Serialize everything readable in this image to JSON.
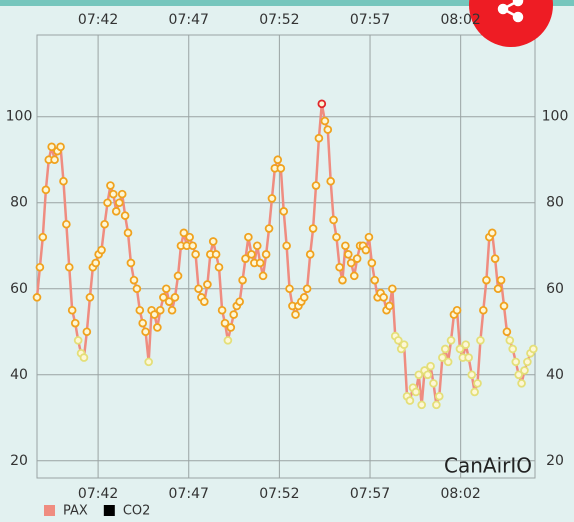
{
  "chart_data": {
    "type": "line",
    "watermark": "CanAirIO",
    "x": [
      458.63,
      458.79,
      458.95,
      459.12,
      459.28,
      459.44,
      459.6,
      459.76,
      459.93,
      460.09,
      460.25,
      460.41,
      460.57,
      460.74,
      460.9,
      461.06,
      461.22,
      461.38,
      461.55,
      461.71,
      461.87,
      462.03,
      462.19,
      462.36,
      462.52,
      462.68,
      462.84,
      463.0,
      463.17,
      463.33,
      463.49,
      463.65,
      463.81,
      463.98,
      464.14,
      464.3,
      464.46,
      464.62,
      464.79,
      464.95,
      465.11,
      465.27,
      465.43,
      465.6,
      465.76,
      465.92,
      466.08,
      466.24,
      466.41,
      466.57,
      466.73,
      466.89,
      467.05,
      467.22,
      467.38,
      467.54,
      467.7,
      467.86,
      468.03,
      468.19,
      468.35,
      468.51,
      468.67,
      468.84,
      469.0,
      469.16,
      469.32,
      469.48,
      469.65,
      469.81,
      469.97,
      470.13,
      470.29,
      470.46,
      470.62,
      470.78,
      470.94,
      471.1,
      471.27,
      471.43,
      471.59,
      471.75,
      471.91,
      472.08,
      472.24,
      472.4,
      472.56,
      472.72,
      472.89,
      473.05,
      473.21,
      473.37,
      473.53,
      473.7,
      473.86,
      474.02,
      474.18,
      474.34,
      474.51,
      474.67,
      474.83,
      474.99,
      475.15,
      475.32,
      475.48,
      475.64,
      475.8,
      475.96,
      476.13,
      476.29,
      476.45,
      476.61,
      476.77,
      476.94,
      477.1,
      477.26,
      477.42,
      477.58,
      477.75,
      477.91,
      478.07,
      478.23,
      478.39,
      478.56,
      478.72,
      478.88,
      479.04,
      479.2,
      479.37,
      479.53,
      479.69,
      479.85,
      480.01,
      480.18,
      480.34,
      480.5,
      480.66,
      480.82,
      480.99,
      481.15,
      481.31,
      481.47,
      481.63,
      481.8,
      481.96,
      482.12,
      482.28,
      482.44,
      482.61,
      482.77,
      482.93,
      483.09,
      483.25,
      483.42,
      483.58,
      483.74,
      483.9,
      484.06,
      484.23,
      484.39,
      484.55,
      484.71,
      484.87,
      485.04,
      485.2,
      485.36,
      485.52,
      485.68,
      485.85,
      486.01
    ],
    "series": [
      {
        "name": "PAX",
        "color": "#ef8c80",
        "marker_levels": [
          {
            "below": 50,
            "color": "#e4df78"
          },
          {
            "below": 100,
            "color": "#f0a21e"
          },
          {
            "color": "#e0262a"
          }
        ],
        "values": [
          58,
          65,
          72,
          83,
          90,
          93,
          90,
          92,
          93,
          85,
          75,
          65,
          55,
          52,
          48,
          45,
          44,
          50,
          58,
          65,
          66,
          68,
          69,
          75,
          80,
          84,
          82,
          78,
          80,
          82,
          77,
          73,
          66,
          62,
          60,
          55,
          52,
          50,
          43,
          55,
          54,
          51,
          55,
          58,
          60,
          57,
          55,
          58,
          63,
          70,
          73,
          70,
          72,
          70,
          68,
          60,
          58,
          57,
          61,
          68,
          71,
          68,
          65,
          55,
          52,
          48,
          51,
          54,
          56,
          57,
          62,
          67,
          72,
          68,
          66,
          70,
          66,
          63,
          68,
          74,
          81,
          88,
          90,
          88,
          78,
          70,
          60,
          56,
          54,
          56,
          57,
          58,
          60,
          68,
          74,
          84,
          95,
          103,
          99,
          97,
          85,
          76,
          72,
          65,
          62,
          70,
          68,
          66,
          63,
          67,
          70,
          70,
          69,
          72,
          66,
          62,
          58,
          59,
          58,
          55,
          56,
          60,
          49,
          48,
          46,
          47,
          35,
          34,
          37,
          36,
          40,
          33,
          41,
          40,
          42,
          38,
          33,
          35,
          44,
          46,
          43,
          48,
          54,
          55,
          46,
          44,
          47,
          44,
          40,
          36,
          38,
          48,
          55,
          62,
          72,
          73,
          67,
          60,
          62,
          56,
          50,
          48,
          46,
          43,
          40,
          38,
          41,
          43,
          45,
          46
        ]
      },
      {
        "name": "CO2",
        "color": "#000000",
        "values": [
          null,
          null,
          null,
          null,
          null,
          null,
          null,
          null,
          null,
          null,
          null,
          null,
          null,
          null,
          null,
          null,
          null,
          null,
          null,
          null,
          null,
          null,
          null,
          null,
          null,
          null,
          null,
          null,
          null,
          null,
          null,
          null,
          null,
          null,
          null,
          null,
          null,
          null,
          null,
          null,
          null,
          null,
          null,
          null,
          null,
          null,
          null,
          null,
          null,
          null,
          null,
          null,
          null,
          null,
          null,
          null,
          null,
          null,
          null,
          null,
          null,
          null,
          null,
          null,
          null,
          null,
          null,
          null,
          null,
          null,
          null,
          null,
          null,
          null,
          null,
          null,
          null,
          null,
          null,
          null,
          null,
          null,
          null,
          null,
          null,
          null,
          null,
          null,
          null,
          null,
          null,
          null,
          null,
          null,
          null,
          null,
          null,
          null,
          null,
          null,
          null,
          null,
          null,
          null,
          null,
          null,
          null,
          null,
          null,
          null,
          null,
          null,
          null,
          null,
          null,
          null,
          null,
          null,
          null,
          null,
          null,
          null,
          null,
          null,
          null,
          null,
          null,
          null,
          null,
          null,
          null,
          null,
          null,
          null,
          null,
          null,
          null,
          null,
          null,
          null,
          null,
          null,
          null,
          null,
          null,
          null,
          null,
          null,
          null,
          null,
          null,
          null,
          null,
          null,
          null,
          null,
          null,
          null,
          null,
          null,
          null,
          null,
          null,
          null,
          null,
          null,
          null,
          null,
          null,
          null
        ]
      }
    ],
    "xlim": [
      458.63,
      486.1
    ],
    "xticks": [
      {
        "value": 462,
        "label": "07:42"
      },
      {
        "value": 467,
        "label": "07:47"
      },
      {
        "value": 472,
        "label": "07:52"
      },
      {
        "value": 477,
        "label": "07:57"
      },
      {
        "value": 482,
        "label": "08:02"
      }
    ],
    "ylim": [
      16,
      119
    ],
    "yticks": [
      20,
      40,
      60,
      80,
      100
    ],
    "grid": true,
    "legend": "bottom-left"
  }
}
